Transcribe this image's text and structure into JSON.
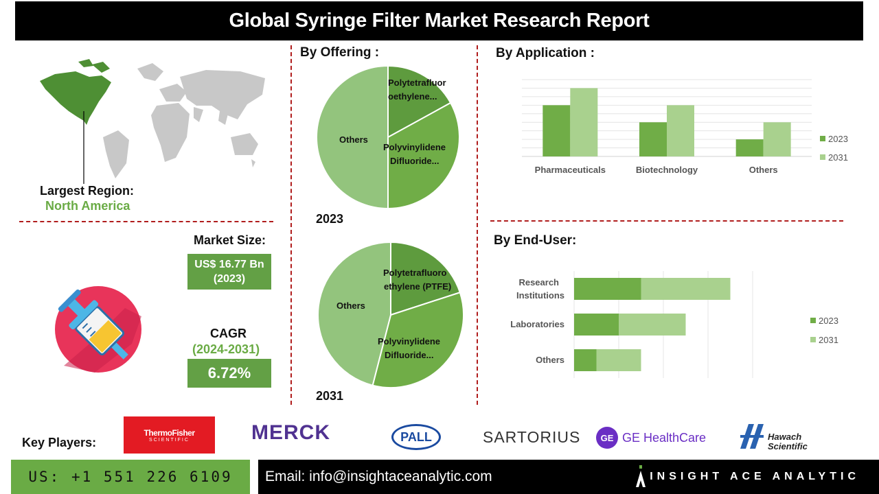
{
  "title": "Global Syringe Filter Market Research Report",
  "largest_region": {
    "label": "Largest Region:",
    "value": "North America"
  },
  "market_size": {
    "label": "Market Size:",
    "value_line1": "US$ 16.77 Bn",
    "value_line2": "(2023)"
  },
  "cagr": {
    "label": "CAGR",
    "period": "(2024-2031)",
    "value": "6.72%"
  },
  "sections": {
    "offering": "By Offering :",
    "application": "By Application :",
    "end_user": "By End-User:"
  },
  "key_players": {
    "label": "Key Players:",
    "logos": [
      "ThermoFisher SCIENTIFIC",
      "MERCK",
      "PALL",
      "SARTORIUS",
      "GE HealthCare",
      "Hawach Scientific"
    ]
  },
  "footer": {
    "phone": "US: +1 551 226 6109",
    "email": "Email: info@insightaceanalytic.com",
    "brand": "INSIGHT ACE ANALYTIC"
  },
  "colors": {
    "dark_green": "#5e9b3e",
    "mid_green": "#70ad47",
    "light_green": "#a9d18e",
    "pie_others": "#93c47d",
    "accent_red": "#b01c1c"
  },
  "chart_data": [
    {
      "type": "pie",
      "year": "2023",
      "slices": [
        {
          "label": "Polytetrafluor oethylene...",
          "value": 17
        },
        {
          "label": "Polyvinylidene Difluoride...",
          "value": 33
        },
        {
          "label": "Others",
          "value": 50
        }
      ]
    },
    {
      "type": "pie",
      "year": "2031",
      "slices": [
        {
          "label": "Polytetrafluoro ethylene (PTFE)",
          "value": 20
        },
        {
          "label": "Polyvinylidene Difluoride...",
          "value": 34
        },
        {
          "label": "Others",
          "value": 46
        }
      ]
    },
    {
      "type": "bar",
      "orientation": "vertical",
      "categories": [
        "Pharmaceuticals",
        "Biotechnology",
        "Others"
      ],
      "series": [
        {
          "name": "2023",
          "values": [
            3,
            2,
            1
          ]
        },
        {
          "name": "2031",
          "values": [
            4,
            3,
            2
          ]
        }
      ],
      "ylim": [
        0,
        4.5
      ],
      "grid": true,
      "legend": "right"
    },
    {
      "type": "bar",
      "orientation": "horizontal",
      "stacked": true,
      "categories": [
        "Research Institutions",
        "Laboratories",
        "Others"
      ],
      "series": [
        {
          "name": "2023",
          "values": [
            3,
            2,
            1
          ]
        },
        {
          "name": "2031",
          "values": [
            4,
            3,
            2
          ]
        }
      ],
      "xlim": [
        0,
        9
      ],
      "grid": true,
      "legend": "right"
    }
  ]
}
